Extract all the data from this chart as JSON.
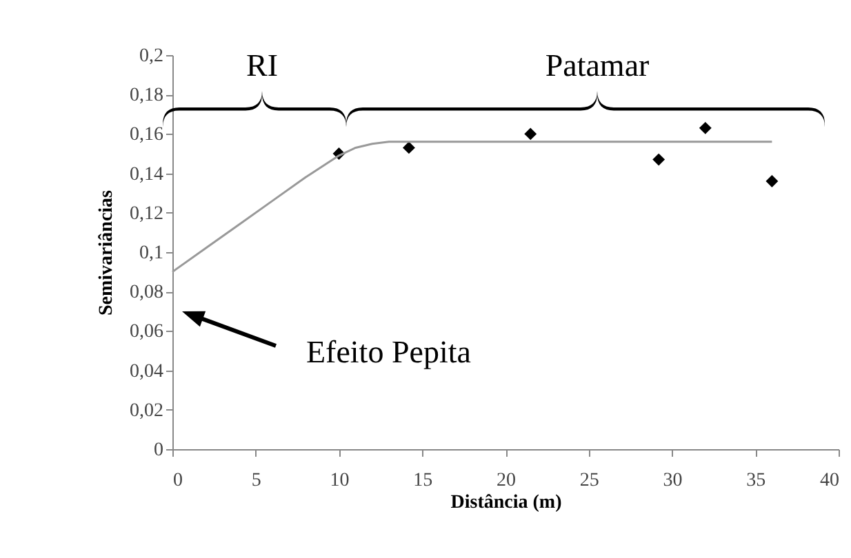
{
  "chart_data": {
    "type": "scatter",
    "xlabel": "Distância (m)",
    "ylabel": "Semivariâncias",
    "xlim": [
      0,
      40
    ],
    "xticks": [
      0,
      5,
      10,
      15,
      20,
      25,
      30,
      35,
      40
    ],
    "ylim": [
      0,
      0.2
    ],
    "yticks": [
      {
        "value": 0,
        "label": "0"
      },
      {
        "value": 0.02,
        "label": "0,02"
      },
      {
        "value": 0.04,
        "label": "0,04"
      },
      {
        "value": 0.06,
        "label": "0,06"
      },
      {
        "value": 0.08,
        "label": "0,08"
      },
      {
        "value": 0.1,
        "label": "0,1"
      },
      {
        "value": 0.12,
        "label": "0,12"
      },
      {
        "value": 0.14,
        "label": "0,14"
      },
      {
        "value": 0.16,
        "label": "0,16"
      },
      {
        "value": 0.18,
        "label": "0,18"
      },
      {
        "value": 0.2,
        "label": "0,2"
      }
    ],
    "series": [
      {
        "color": "#000000",
        "marker": "diamond",
        "x": [
          10,
          14.2,
          21.5,
          29.2,
          32,
          36
        ],
        "values": [
          0.15,
          0.153,
          0.16,
          0.147,
          0.163,
          0.136
        ]
      },
      {
        "type": "line",
        "color": "#999999",
        "x": [
          0,
          2,
          4,
          6,
          8,
          10,
          11,
          12,
          13,
          36
        ],
        "values": [
          0.09,
          0.102,
          0.114,
          0.126,
          0.138,
          0.149,
          0.153,
          0.155,
          0.156,
          0.156
        ]
      }
    ],
    "annotations": [
      "RI",
      "Patamar",
      "Efeito Pepita"
    ],
    "grid": false,
    "legend": false
  }
}
